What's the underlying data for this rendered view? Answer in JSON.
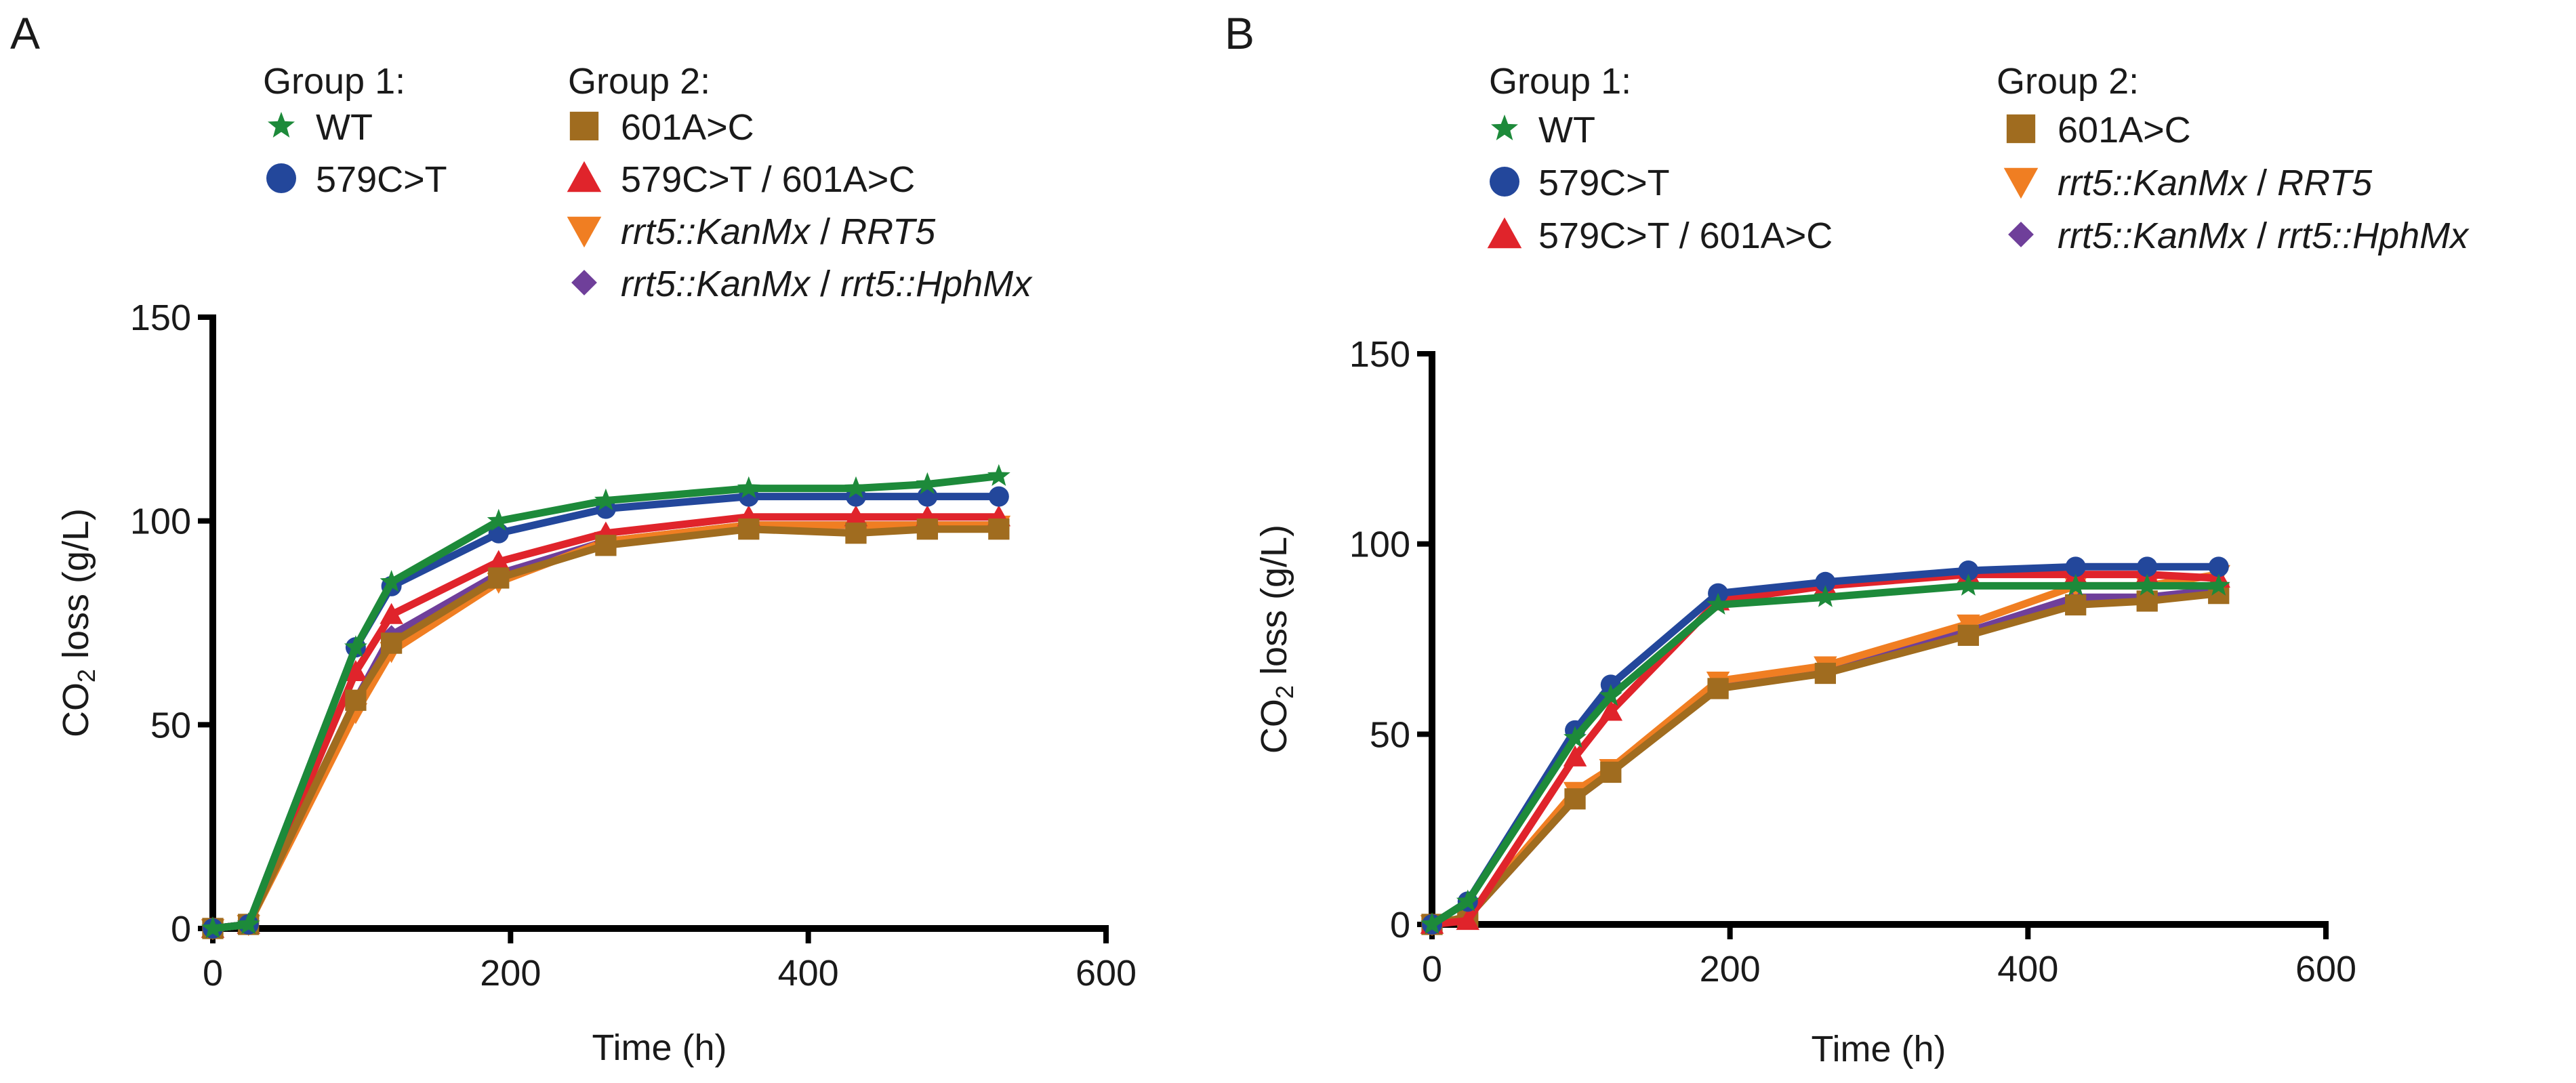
{
  "chart_data": [
    {
      "type": "line",
      "panel": "A",
      "xlabel": "Time (h)",
      "ylabel_parts": [
        "CO",
        "2",
        " loss (g/L)"
      ],
      "xlim": [
        0,
        600
      ],
      "ylim": [
        0,
        150
      ],
      "x_ticks": [
        0,
        200,
        400,
        600
      ],
      "y_ticks": [
        0,
        50,
        100,
        150
      ],
      "legend": {
        "group1_title": "Group 1:",
        "group2_title": "Group 2:",
        "group1": [
          "WT",
          "579C>T"
        ],
        "group2": [
          "601A>C",
          "579C>T / 601A>C",
          "rrt5::KanMx / RRT5",
          "rrt5::KanMx / rrt5::HphMx"
        ]
      },
      "x": [
        0,
        24,
        96,
        120,
        192,
        264,
        360,
        432,
        480,
        528
      ],
      "series": [
        {
          "name": "rrt5::KanMx / rrt5::HphMx",
          "color": "#6f3f9a",
          "marker": "diamond",
          "values": [
            0,
            1,
            56,
            72,
            87,
            95,
            99,
            99,
            99,
            99
          ]
        },
        {
          "name": "rrt5::KanMx / RRT5",
          "color": "#f07e22",
          "marker": "triangle-down",
          "values": [
            0,
            1,
            53,
            68,
            85,
            95,
            99,
            99,
            99,
            99
          ]
        },
        {
          "name": "579C>T / 601A>C",
          "color": "#e0242b",
          "marker": "triangle-up",
          "values": [
            0,
            1,
            63,
            77,
            90,
            97,
            101,
            101,
            101,
            101
          ]
        },
        {
          "name": "601A>C",
          "color": "#a06c1f",
          "marker": "square",
          "values": [
            0,
            1,
            56,
            70,
            86,
            94,
            98,
            97,
            98,
            98
          ]
        },
        {
          "name": "579C>T",
          "color": "#23479b",
          "marker": "circle",
          "values": [
            0,
            1,
            69,
            84,
            97,
            103,
            106,
            106,
            106,
            106
          ]
        },
        {
          "name": "WT",
          "color": "#1d8a3a",
          "marker": "star",
          "values": [
            0,
            1,
            69,
            85,
            100,
            105,
            108,
            108,
            109,
            111
          ]
        }
      ]
    },
    {
      "type": "line",
      "panel": "B",
      "xlabel": "Time (h)",
      "ylabel_parts": [
        "CO",
        "2",
        " loss (g/L)"
      ],
      "xlim": [
        0,
        600
      ],
      "ylim": [
        0,
        150
      ],
      "x_ticks": [
        0,
        200,
        400,
        600
      ],
      "y_ticks": [
        0,
        50,
        100,
        150
      ],
      "legend": {
        "group1_title": "Group 1:",
        "group2_title": "Group 2:",
        "group1": [
          "WT",
          "579C>T",
          "579C>T / 601A>C"
        ],
        "group2": [
          "601A>C",
          "rrt5::KanMx / RRT5",
          "rrt5::KanMx / rrt5::HphMx"
        ]
      },
      "x": [
        0,
        24,
        96,
        120,
        192,
        264,
        360,
        432,
        480,
        528
      ],
      "series": [
        {
          "name": "rrt5::KanMx / rrt5::HphMx",
          "color": "#6f3f9a",
          "marker": "diamond",
          "values": [
            0,
            2,
            33,
            40,
            63,
            67,
            77,
            86,
            86,
            88
          ]
        },
        {
          "name": "rrt5::KanMx / RRT5",
          "color": "#f07e22",
          "marker": "triangle-down",
          "values": [
            0,
            2,
            35,
            41,
            64,
            68,
            79,
            89,
            89,
            92
          ]
        },
        {
          "name": "601A>C",
          "color": "#a06c1f",
          "marker": "square",
          "values": [
            0,
            2,
            33,
            40,
            62,
            66,
            76,
            84,
            85,
            87
          ]
        },
        {
          "name": "579C>T / 601A>C",
          "color": "#e0242b",
          "marker": "triangle-up",
          "values": [
            0,
            1,
            44,
            56,
            85,
            89,
            92,
            92,
            92,
            91
          ]
        },
        {
          "name": "579C>T",
          "color": "#23479b",
          "marker": "circle",
          "values": [
            0,
            6,
            51,
            63,
            87,
            90,
            93,
            94,
            94,
            94
          ]
        },
        {
          "name": "WT",
          "color": "#1d8a3a",
          "marker": "star",
          "values": [
            0,
            6,
            49,
            60,
            84,
            86,
            89,
            89,
            89,
            89
          ]
        }
      ]
    }
  ]
}
